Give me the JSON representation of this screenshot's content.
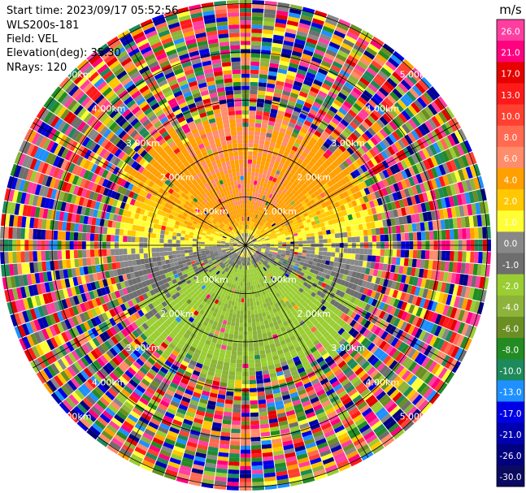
{
  "header": {
    "start_time": "Start time: 2023/09/17 05:52:56",
    "instrument": "WLS200s-181",
    "field": "Field: VEL",
    "elevation": "Elevation(deg): 35.30",
    "nrays": "NRays: 120"
  },
  "chart_data": {
    "type": "heatmap",
    "projection": "polar PPI",
    "field": "VEL",
    "units": "m/s",
    "range_rings_km": [
      1.0,
      2.0,
      3.0,
      4.0,
      5.0
    ],
    "ring_labels": [
      "1.00km",
      "2.00km",
      "3.00km",
      "4.00km",
      "5.00km"
    ],
    "ray_count": 120,
    "azimuth_lines_deg": [
      0,
      30,
      60,
      90,
      120,
      150,
      180,
      210,
      240,
      270,
      300,
      330
    ],
    "coherent_region": {
      "north_sector_velocity_ms": [
        2.0,
        6.0
      ],
      "south_sector_velocity_ms": [
        -8.0,
        -2.0
      ],
      "near_center_velocity_ms": [
        -1.0,
        1.0
      ],
      "approx_max_range_km": 2.7
    },
    "noise_beyond_km": 2.7,
    "colorbar": {
      "title": "m/s",
      "ticks": [
        "26.0",
        "21.0",
        "17.0",
        "13.0",
        "10.0",
        "8.0",
        "6.0",
        "4.0",
        "2.0",
        "1.0",
        "0.0",
        "-1.0",
        "-2.0",
        "-4.0",
        "-6.0",
        "-8.0",
        "-10.0",
        "-13.0",
        "-17.0",
        "-21.0",
        "-26.0",
        "-30.0"
      ],
      "bands": [
        {
          "range": "26 to 30",
          "color": "#ff3ea0"
        },
        {
          "range": "21 to 26",
          "color": "#ff007f"
        },
        {
          "range": "17 to 21",
          "color": "#e60000"
        },
        {
          "range": "13 to 17",
          "color": "#ff1a1a"
        },
        {
          "range": "10 to 13",
          "color": "#ff4030"
        },
        {
          "range": "8 to 10",
          "color": "#ff6a50"
        },
        {
          "range": "6 to 8",
          "color": "#ff8c6a"
        },
        {
          "range": "4 to 6",
          "color": "#ff9f00"
        },
        {
          "range": "2 to 4",
          "color": "#ffc800"
        },
        {
          "range": "1 to 2",
          "color": "#ffff33"
        },
        {
          "range": "0 to 1",
          "color": "#888888"
        },
        {
          "range": "-1 to 0",
          "color": "#6e6e6e"
        },
        {
          "range": "-2 to -1",
          "color": "#9acd32"
        },
        {
          "range": "-4 to -2",
          "color": "#8db33a"
        },
        {
          "range": "-6 to -4",
          "color": "#6b8e23"
        },
        {
          "range": "-8 to -6",
          "color": "#228b22"
        },
        {
          "range": "-10 to -8",
          "color": "#1c8a5a"
        },
        {
          "range": "-13 to -10",
          "color": "#1e90ff"
        },
        {
          "range": "-17 to -13",
          "color": "#0000e6"
        },
        {
          "range": "-21 to -17",
          "color": "#0000b0"
        },
        {
          "range": "-26 to -21",
          "color": "#000080"
        },
        {
          "range": "-30 to -26",
          "color": "#0a0a60"
        }
      ]
    }
  }
}
